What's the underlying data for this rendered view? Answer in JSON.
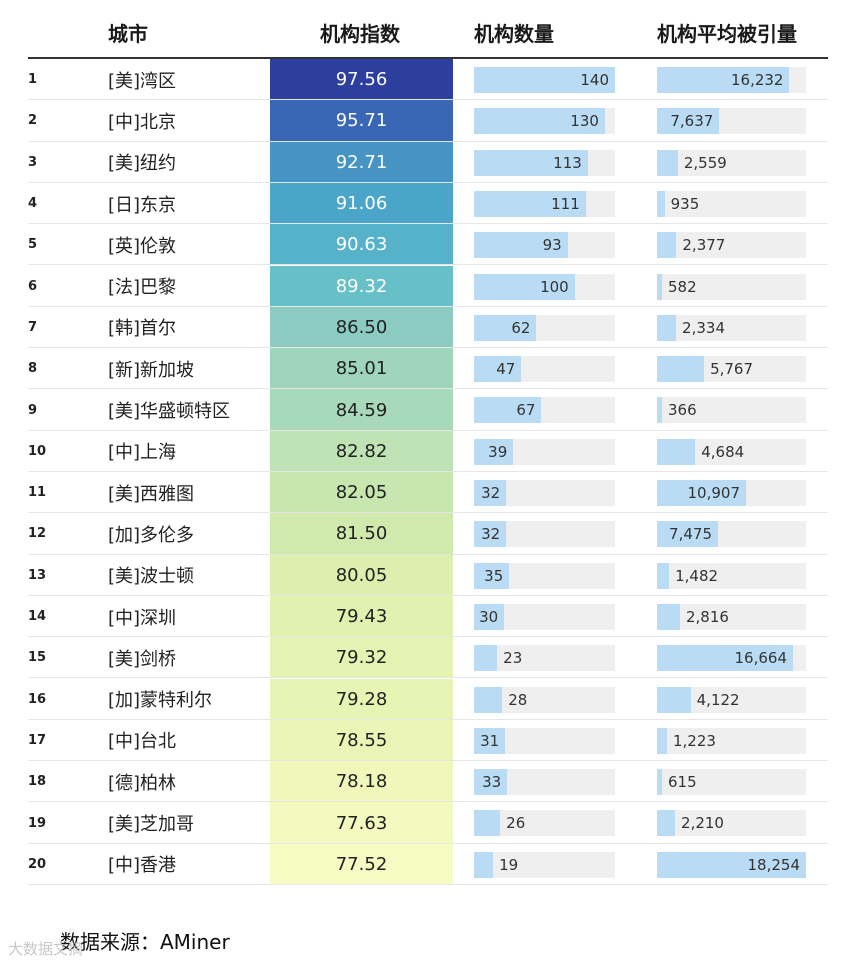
{
  "chart_data": {
    "type": "table",
    "columns": [
      "城市",
      "机构指数",
      "机构数量",
      "机构平均被引量"
    ],
    "rows": [
      {
        "rank": "1",
        "city": "[美]湾区",
        "index": "97.56",
        "count": 140,
        "citations": 16232,
        "count_label": "140",
        "citations_label": "16,232"
      },
      {
        "rank": "2",
        "city": "[中]北京",
        "index": "95.71",
        "count": 130,
        "citations": 7637,
        "count_label": "130",
        "citations_label": "7,637"
      },
      {
        "rank": "3",
        "city": "[美]纽约",
        "index": "92.71",
        "count": 113,
        "citations": 2559,
        "count_label": "113",
        "citations_label": "2,559"
      },
      {
        "rank": "4",
        "city": "[日]东京",
        "index": "91.06",
        "count": 111,
        "citations": 935,
        "count_label": "111",
        "citations_label": "935"
      },
      {
        "rank": "5",
        "city": "[英]伦敦",
        "index": "90.63",
        "count": 93,
        "citations": 2377,
        "count_label": "93",
        "citations_label": "2,377"
      },
      {
        "rank": "6",
        "city": "[法]巴黎",
        "index": "89.32",
        "count": 100,
        "citations": 582,
        "count_label": "100",
        "citations_label": "582"
      },
      {
        "rank": "7",
        "city": "[韩]首尔",
        "index": "86.50",
        "count": 62,
        "citations": 2334,
        "count_label": "62",
        "citations_label": "2,334"
      },
      {
        "rank": "8",
        "city": "[新]新加坡",
        "index": "85.01",
        "count": 47,
        "citations": 5767,
        "count_label": "47",
        "citations_label": "5,767"
      },
      {
        "rank": "9",
        "city": "[美]华盛顿特区",
        "index": "84.59",
        "count": 67,
        "citations": 366,
        "count_label": "67",
        "citations_label": "366"
      },
      {
        "rank": "10",
        "city": "[中]上海",
        "index": "82.82",
        "count": 39,
        "citations": 4684,
        "count_label": "39",
        "citations_label": "4,684"
      },
      {
        "rank": "11",
        "city": "[美]西雅图",
        "index": "82.05",
        "count": 32,
        "citations": 10907,
        "count_label": "32",
        "citations_label": "10,907"
      },
      {
        "rank": "12",
        "city": "[加]多伦多",
        "index": "81.50",
        "count": 32,
        "citations": 7475,
        "count_label": "32",
        "citations_label": "7,475"
      },
      {
        "rank": "13",
        "city": "[美]波士顿",
        "index": "80.05",
        "count": 35,
        "citations": 1482,
        "count_label": "35",
        "citations_label": "1,482"
      },
      {
        "rank": "14",
        "city": "[中]深圳",
        "index": "79.43",
        "count": 30,
        "citations": 2816,
        "count_label": "30",
        "citations_label": "2,816"
      },
      {
        "rank": "15",
        "city": "[美]剑桥",
        "index": "79.32",
        "count": 23,
        "citations": 16664,
        "count_label": "23",
        "citations_label": "16,664"
      },
      {
        "rank": "16",
        "city": "[加]蒙特利尔",
        "index": "79.28",
        "count": 28,
        "citations": 4122,
        "count_label": "28",
        "citations_label": "4,122"
      },
      {
        "rank": "17",
        "city": "[中]台北",
        "index": "78.55",
        "count": 31,
        "citations": 1223,
        "count_label": "31",
        "citations_label": "1,223"
      },
      {
        "rank": "18",
        "city": "[德]柏林",
        "index": "78.18",
        "count": 33,
        "citations": 615,
        "count_label": "33",
        "citations_label": "615"
      },
      {
        "rank": "19",
        "city": "[美]芝加哥",
        "index": "77.63",
        "count": 26,
        "citations": 2210,
        "count_label": "26",
        "citations_label": "2,210"
      },
      {
        "rank": "20",
        "city": "[中]香港",
        "index": "77.52",
        "count": 19,
        "citations": 18254,
        "count_label": "19",
        "citations_label": "18,254"
      }
    ],
    "count_max": 140,
    "citations_max": 18254
  },
  "header": {
    "city": "城市",
    "index": "机构指数",
    "count": "机构数量",
    "citations": "机构平均被引量"
  },
  "footer": {
    "source": "数据来源：AMiner"
  },
  "watermark": {
    "text": "大数据文摘"
  },
  "colors": {
    "bar_fill": "#b9dcf4",
    "bar_track": "#efefef",
    "index_scale": [
      "#2c3e9e",
      "#3a67b5",
      "#4594c4",
      "#4aa5c8",
      "#56b2c9",
      "#67c0c8",
      "#8bcbc1",
      "#9fd4bd",
      "#a9d9bb",
      "#bfe3b4",
      "#c7e6b0",
      "#d0eaae",
      "#dcefae",
      "#e1f1b0",
      "#e5f3b2",
      "#e7f4b3",
      "#ebf6b6",
      "#eff8ba",
      "#f3fabf",
      "#f5fbc3"
    ]
  }
}
